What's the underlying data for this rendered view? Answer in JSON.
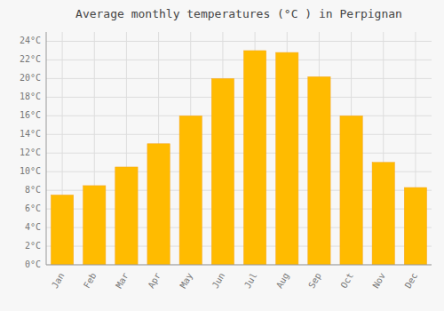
{
  "chart_data": {
    "type": "bar",
    "title": "Average monthly temperatures (°C ) in Perpignan",
    "categories": [
      "Jan",
      "Feb",
      "Mar",
      "Apr",
      "May",
      "Jun",
      "Jul",
      "Aug",
      "Sep",
      "Oct",
      "Nov",
      "Dec"
    ],
    "values": [
      7.5,
      8.5,
      10.5,
      13.0,
      16.0,
      20.0,
      23.0,
      22.8,
      20.2,
      16.0,
      11.0,
      8.3
    ],
    "color": "#FFBB00",
    "ylim": [
      0,
      25
    ],
    "yticks": [
      {
        "value": 0,
        "label": "0°C"
      },
      {
        "value": 2,
        "label": "2°C"
      },
      {
        "value": 4,
        "label": "4°C"
      },
      {
        "value": 6,
        "label": "6°C"
      },
      {
        "value": 8,
        "label": "8°C"
      },
      {
        "value": 10,
        "label": "10°C"
      },
      {
        "value": 12,
        "label": "12°C"
      },
      {
        "value": 14,
        "label": "14°C"
      },
      {
        "value": 16,
        "label": "16°C"
      },
      {
        "value": 18,
        "label": "18°C"
      },
      {
        "value": 20,
        "label": "20°C"
      },
      {
        "value": 22,
        "label": "22°C"
      },
      {
        "value": 24,
        "label": "24°C"
      }
    ],
    "grid": true
  }
}
